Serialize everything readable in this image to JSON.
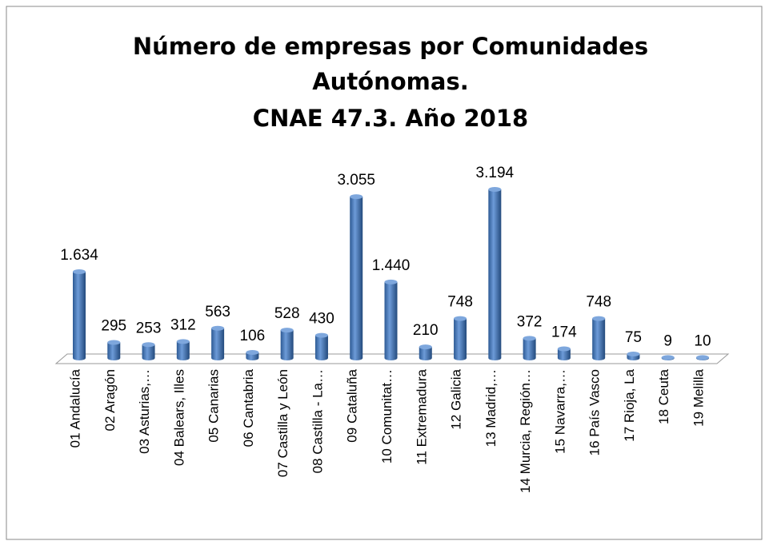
{
  "chart_data": {
    "type": "bar3d",
    "title": [
      "Número de empresas por Comunidades",
      "Autónomas.",
      "CNAE 47.3. Año 2018"
    ],
    "categories": [
      "01 Andalucía",
      "02 Aragón",
      "03 Asturias,…",
      "04 Balears, Illes",
      "05 Canarias",
      "06 Cantabria",
      "07 Castilla y León",
      "08 Castilla - La…",
      "09 Cataluña",
      "10 Comunitat…",
      "11 Extremadura",
      "12 Galicia",
      "13 Madrid,…",
      "14 Murcia, Región…",
      "15 Navarra,…",
      "16 País Vasco",
      "17 Rioja, La",
      "18 Ceuta",
      "19 Melilla"
    ],
    "values": [
      1634,
      295,
      253,
      312,
      563,
      106,
      528,
      430,
      3055,
      1440,
      210,
      748,
      3194,
      372,
      174,
      748,
      75,
      9,
      10
    ],
    "value_labels": [
      "1.634",
      "295",
      "253",
      "312",
      "563",
      "106",
      "528",
      "430",
      "3.055",
      "1.440",
      "210",
      "748",
      "3.194",
      "372",
      "174",
      "748",
      "75",
      "9",
      "10"
    ],
    "color": "#4a7ebb"
  }
}
